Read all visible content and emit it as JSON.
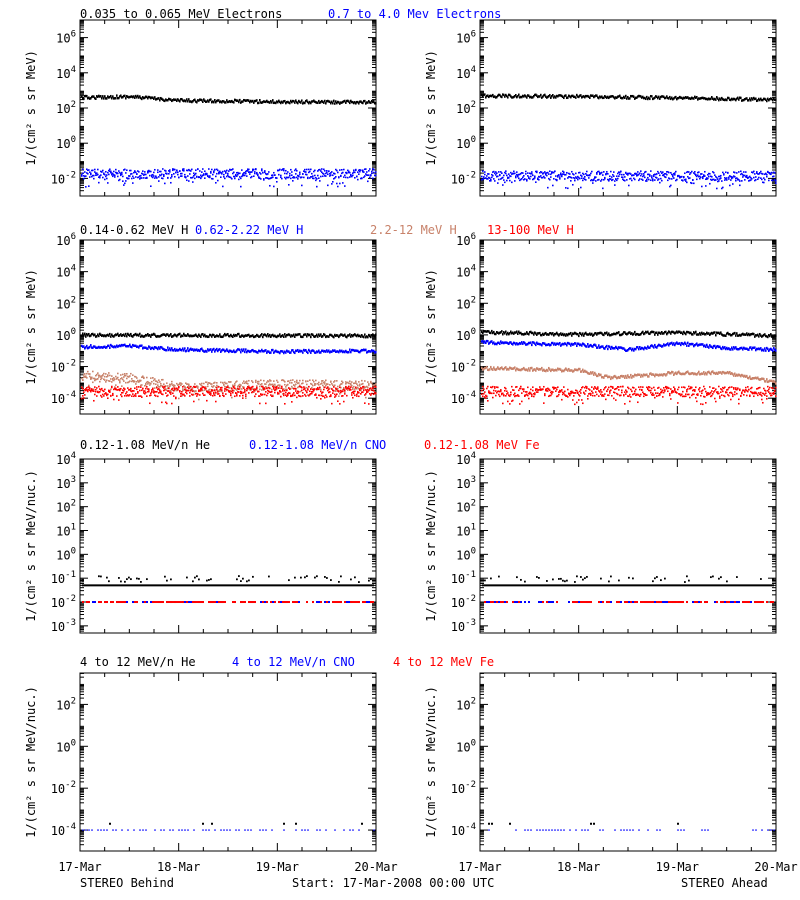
{
  "colors": {
    "black": "#000000",
    "blue": "#0000ff",
    "tan": "#c8826a",
    "red": "#ff0000"
  },
  "header_rows": [
    {
      "labels": [
        {
          "text": "0.035 to 0.065 MeV Electrons",
          "color": "black"
        },
        {
          "text": "0.7 to 4.0 Mev Electrons",
          "color": "blue"
        }
      ]
    },
    {
      "labels": [
        {
          "text": "0.14-0.62 MeV H",
          "color": "black"
        },
        {
          "text": "0.62-2.22 MeV H",
          "color": "blue"
        },
        {
          "text": "2.2-12 MeV H",
          "color": "tan"
        },
        {
          "text": "13-100 MeV H",
          "color": "red"
        }
      ]
    },
    {
      "labels": [
        {
          "text": "0.12-1.08 MeV/n He",
          "color": "black"
        },
        {
          "text": "0.12-1.08 MeV/n CNO",
          "color": "blue"
        },
        {
          "text": "0.12-1.08 MeV Fe",
          "color": "red"
        }
      ]
    },
    {
      "labels": [
        {
          "text": "4 to 12 MeV/n He",
          "color": "black"
        },
        {
          "text": "4 to 12 MeV/n CNO",
          "color": "blue"
        },
        {
          "text": "4 to 12 MeV Fe",
          "color": "red"
        }
      ]
    }
  ],
  "ylabels": {
    "flux": "1/(cm² s sr MeV)",
    "nuc": "1/(cm² s sr MeV/nuc.)"
  },
  "x_ticks": [
    "17-Mar",
    "18-Mar",
    "19-Mar",
    "20-Mar"
  ],
  "footer": {
    "left": "STEREO Behind",
    "center": "Start: 17-Mar-2008 00:00 UTC",
    "right": "STEREO Ahead"
  },
  "chart_data": [
    {
      "type": "scatter",
      "row": 0,
      "spacecraft": "STEREO Behind",
      "ylog": true,
      "ylim_exp": [
        -3,
        7
      ],
      "tick_exps": [
        -2,
        0,
        2,
        4,
        6
      ],
      "x": [
        0,
        3
      ],
      "series": [
        {
          "name": "0.035 to 0.065 MeV Electrons",
          "color": "black",
          "mode": "line",
          "knots": [
            [
              0,
              400
            ],
            [
              0.5,
              450
            ],
            [
              1,
              270
            ],
            [
              2,
              230
            ],
            [
              3,
              210
            ]
          ]
        },
        {
          "name": "0.7 to 4.0 Mev Electrons",
          "color": "blue",
          "mode": "band",
          "knots": [
            [
              0,
              0.02
            ],
            [
              3,
              0.02
            ]
          ]
        }
      ]
    },
    {
      "type": "scatter",
      "row": 0,
      "spacecraft": "STEREO Ahead",
      "ylog": true,
      "ylim_exp": [
        -3,
        7
      ],
      "tick_exps": [
        -2,
        0,
        2,
        4,
        6
      ],
      "x": [
        0,
        3
      ],
      "series": [
        {
          "name": "0.035 to 0.065 MeV Electrons",
          "color": "black",
          "mode": "line",
          "knots": [
            [
              0,
              500
            ],
            [
              1,
              460
            ],
            [
              2,
              380
            ],
            [
              3,
              300
            ]
          ]
        },
        {
          "name": "0.7 to 4.0 Mev Electrons",
          "color": "blue",
          "mode": "band",
          "knots": [
            [
              0,
              0.015
            ],
            [
              3,
              0.015
            ]
          ]
        }
      ]
    },
    {
      "type": "scatter",
      "row": 1,
      "spacecraft": "STEREO Behind",
      "ylog": true,
      "ylim_exp": [
        -5,
        6
      ],
      "tick_exps": [
        -4,
        -2,
        0,
        2,
        4,
        6
      ],
      "x": [
        0,
        3
      ],
      "series": [
        {
          "name": "0.14-0.62 MeV H",
          "color": "black",
          "mode": "line",
          "knots": [
            [
              0,
              1.0
            ],
            [
              3,
              0.9
            ]
          ]
        },
        {
          "name": "0.62-2.22 MeV H",
          "color": "blue",
          "mode": "line",
          "knots": [
            [
              0,
              0.18
            ],
            [
              0.5,
              0.2
            ],
            [
              1,
              0.12
            ],
            [
              2,
              0.09
            ],
            [
              3,
              0.1
            ]
          ]
        },
        {
          "name": "2.2-12 MeV H",
          "color": "tan",
          "mode": "band",
          "knots": [
            [
              0,
              0.003
            ],
            [
              0.5,
              0.002
            ],
            [
              1,
              0.0005
            ],
            [
              2,
              0.0008
            ],
            [
              3,
              0.0007
            ]
          ]
        },
        {
          "name": "13-100 MeV H",
          "color": "red",
          "mode": "band",
          "knots": [
            [
              0,
              0.0003
            ],
            [
              3,
              0.0003
            ]
          ]
        }
      ]
    },
    {
      "type": "scatter",
      "row": 1,
      "spacecraft": "STEREO Ahead",
      "ylog": true,
      "ylim_exp": [
        -5,
        6
      ],
      "tick_exps": [
        -4,
        -2,
        0,
        2,
        4,
        6
      ],
      "x": [
        0,
        3
      ],
      "series": [
        {
          "name": "0.14-0.62 MeV H",
          "color": "black",
          "mode": "line",
          "knots": [
            [
              0,
              1.5
            ],
            [
              1,
              1.1
            ],
            [
              2,
              1.4
            ],
            [
              3,
              0.9
            ]
          ]
        },
        {
          "name": "0.62-2.22 MeV H",
          "color": "blue",
          "mode": "line",
          "knots": [
            [
              0,
              0.35
            ],
            [
              1,
              0.25
            ],
            [
              1.5,
              0.12
            ],
            [
              2,
              0.3
            ],
            [
              2.5,
              0.15
            ],
            [
              3,
              0.12
            ]
          ]
        },
        {
          "name": "2.2-12 MeV H",
          "color": "tan",
          "mode": "line",
          "knots": [
            [
              0,
              0.008
            ],
            [
              1,
              0.006
            ],
            [
              1.3,
              0.002
            ],
            [
              2,
              0.004
            ],
            [
              2.5,
              0.004
            ],
            [
              3,
              0.001
            ]
          ]
        },
        {
          "name": "13-100 MeV H",
          "color": "red",
          "mode": "band",
          "knots": [
            [
              0,
              0.0003
            ],
            [
              3,
              0.0003
            ]
          ]
        }
      ]
    },
    {
      "type": "scatter",
      "row": 2,
      "spacecraft": "STEREO Behind",
      "ylog": true,
      "ylim_exp": [
        -3.3,
        4
      ],
      "tick_exps": [
        -3,
        -2,
        -1,
        0,
        1,
        2,
        3,
        4
      ],
      "x": [
        0,
        3
      ],
      "series": [
        {
          "name": "0.12-1.08 MeV/n He",
          "color": "black",
          "mode": "sparse",
          "knots": [
            [
              0,
              0.05
            ],
            [
              3,
              0.05
            ]
          ]
        },
        {
          "name": "0.12-1.08 MeV/n CNO",
          "color": "blue",
          "mode": "sparse",
          "knots": [
            [
              0,
              0.01
            ],
            [
              3,
              0.01
            ]
          ]
        },
        {
          "name": "0.12-1.08 MeV Fe",
          "color": "red",
          "mode": "sparse",
          "knots": [
            [
              0,
              0.01
            ],
            [
              3,
              0.01
            ]
          ]
        }
      ]
    },
    {
      "type": "scatter",
      "row": 2,
      "spacecraft": "STEREO Ahead",
      "ylog": true,
      "ylim_exp": [
        -3.3,
        4
      ],
      "tick_exps": [
        -3,
        -2,
        -1,
        0,
        1,
        2,
        3,
        4
      ],
      "x": [
        0,
        3
      ],
      "series": [
        {
          "name": "0.12-1.08 MeV/n He",
          "color": "black",
          "mode": "sparse",
          "knots": [
            [
              0,
              0.05
            ],
            [
              3,
              0.05
            ]
          ]
        },
        {
          "name": "0.12-1.08 MeV/n CNO",
          "color": "blue",
          "mode": "sparse",
          "knots": [
            [
              0,
              0.01
            ],
            [
              3,
              0.01
            ]
          ]
        },
        {
          "name": "0.12-1.08 MeV Fe",
          "color": "red",
          "mode": "sparse",
          "knots": [
            [
              0,
              0.01
            ],
            [
              3,
              0.01
            ]
          ]
        }
      ]
    },
    {
      "type": "scatter",
      "row": 3,
      "spacecraft": "STEREO Behind",
      "ylog": true,
      "ylim_exp": [
        -5,
        3.5
      ],
      "tick_exps": [
        -4,
        -2,
        0,
        2
      ],
      "x": [
        0,
        3
      ],
      "series": [
        {
          "name": "4 to 12 MeV/n He",
          "color": "black",
          "mode": "rare",
          "knots": [
            [
              0,
              0.0002
            ],
            [
              3,
              0.0002
            ]
          ]
        },
        {
          "name": "4 to 12 MeV/n CNO",
          "color": "blue",
          "mode": "rare",
          "knots": [
            [
              0,
              0.0001
            ],
            [
              3,
              0.0001
            ]
          ]
        },
        {
          "name": "4 to 12 MeV Fe",
          "color": "red",
          "mode": "rare",
          "knots": [
            [
              0,
              0.0001
            ],
            [
              3,
              0.0001
            ]
          ]
        }
      ]
    },
    {
      "type": "scatter",
      "row": 3,
      "spacecraft": "STEREO Ahead",
      "ylog": true,
      "ylim_exp": [
        -5,
        3.5
      ],
      "tick_exps": [
        -4,
        -2,
        0,
        2
      ],
      "x": [
        0,
        3
      ],
      "series": [
        {
          "name": "4 to 12 MeV/n He",
          "color": "black",
          "mode": "rare",
          "knots": [
            [
              0,
              0.0002
            ],
            [
              3,
              0.0002
            ]
          ]
        },
        {
          "name": "4 to 12 MeV/n CNO",
          "color": "blue",
          "mode": "rare",
          "knots": [
            [
              0,
              0.0001
            ],
            [
              3,
              0.0001
            ]
          ]
        },
        {
          "name": "4 to 12 MeV Fe",
          "color": "red",
          "mode": "rare",
          "knots": [
            [
              0,
              0.0001
            ],
            [
              3,
              0.0001
            ]
          ]
        }
      ]
    }
  ]
}
